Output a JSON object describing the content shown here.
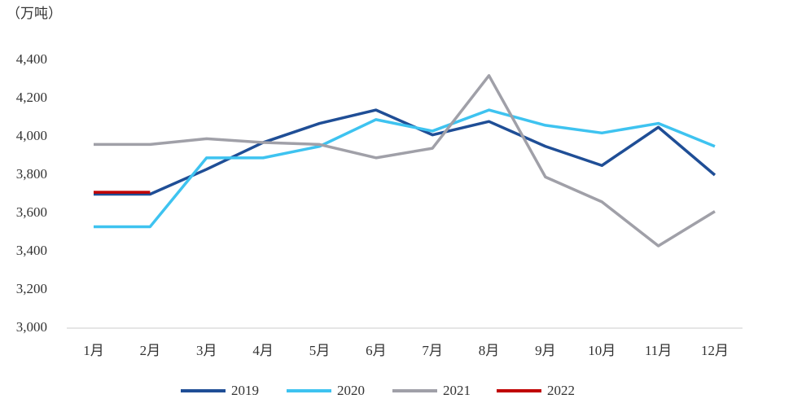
{
  "chart_data": {
    "type": "line",
    "unit_label": "（万吨）",
    "categories": [
      "1月",
      "2月",
      "3月",
      "4月",
      "5月",
      "6月",
      "7月",
      "8月",
      "9月",
      "10月",
      "11月",
      "12月"
    ],
    "series": [
      {
        "name": "2019",
        "color": "#1f4e96",
        "values": [
          3700,
          3700,
          3830,
          3970,
          4070,
          4140,
          4010,
          4080,
          3950,
          3850,
          4050,
          3800
        ]
      },
      {
        "name": "2020",
        "color": "#3ec3f0",
        "values": [
          3530,
          3530,
          3890,
          3890,
          3950,
          4090,
          4030,
          4140,
          4060,
          4020,
          4070,
          3950
        ]
      },
      {
        "name": "2021",
        "color": "#a0a0a8",
        "values": [
          3960,
          3960,
          3990,
          3970,
          3960,
          3890,
          3940,
          4320,
          3790,
          3660,
          3430,
          3610
        ]
      },
      {
        "name": "2022",
        "color": "#c00000",
        "values": [
          3710,
          3710,
          null,
          null,
          null,
          null,
          null,
          null,
          null,
          null,
          null,
          null
        ]
      }
    ],
    "ylim": [
      3000,
      4400
    ],
    "yticks": [
      {
        "value": 3000,
        "label": "3,000"
      },
      {
        "value": 3200,
        "label": "3,200"
      },
      {
        "value": 3400,
        "label": "3,400"
      },
      {
        "value": 3600,
        "label": "3,600"
      },
      {
        "value": 3800,
        "label": "3,800"
      },
      {
        "value": 4000,
        "label": "4,000"
      },
      {
        "value": 4200,
        "label": "4,200"
      },
      {
        "value": 4400,
        "label": "4,400"
      }
    ],
    "grid": false,
    "legend": "bottom"
  }
}
